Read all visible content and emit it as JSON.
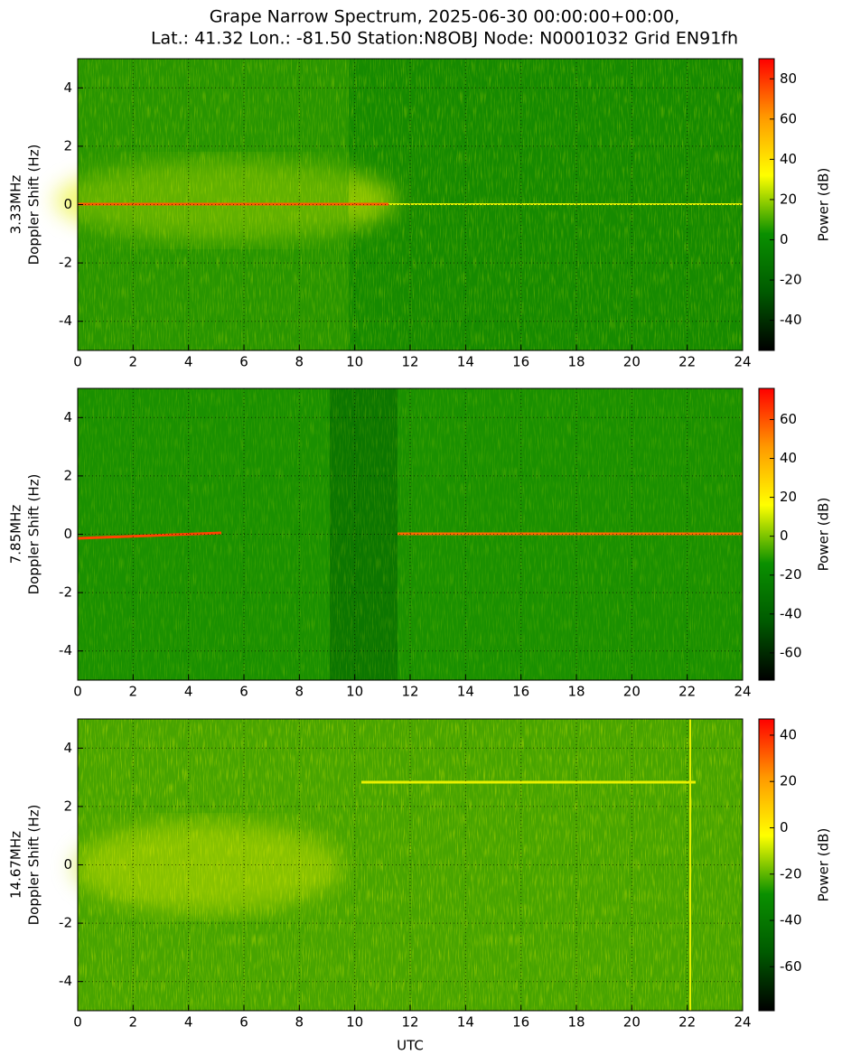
{
  "title": [
    "Grape Narrow Spectrum, 2025-06-30 00:00:00+00:00,",
    "Lat.: 41.32 Lon.: -81.50 Station:N8OBJ Node: N0001032 Grid EN91fh"
  ],
  "chart_data": [
    {
      "type": "heatmap",
      "ylabel": [
        "3.33MHz",
        "Doppler Shift (Hz)"
      ],
      "colorbar_label": "Power (dB)",
      "xlim": [
        0,
        24
      ],
      "xticks": [
        0,
        2,
        4,
        6,
        8,
        10,
        12,
        14,
        16,
        18,
        20,
        22,
        24
      ],
      "ylim": [
        -5,
        5
      ],
      "yticks": [
        -4,
        -2,
        0,
        2,
        4
      ],
      "grid": true,
      "clim": [
        -55,
        90
      ],
      "cticks": [
        -40,
        -20,
        0,
        20,
        40,
        60,
        80
      ],
      "colormap": [
        "#000000",
        "#005a00",
        "#0a9000",
        "#ffff00",
        "#ff9900",
        "#ff0000"
      ]
    },
    {
      "type": "heatmap",
      "ylabel": [
        "7.85MHz",
        "Doppler Shift (Hz)"
      ],
      "colorbar_label": "Power (dB)",
      "xlim": [
        0,
        24
      ],
      "xticks": [
        0,
        2,
        4,
        6,
        8,
        10,
        12,
        14,
        16,
        18,
        20,
        22,
        24
      ],
      "ylim": [
        -5,
        5
      ],
      "yticks": [
        -4,
        -2,
        0,
        2,
        4
      ],
      "grid": true,
      "clim": [
        -74,
        76
      ],
      "cticks": [
        -60,
        -40,
        -20,
        0,
        20,
        40,
        60
      ],
      "colormap": [
        "#000000",
        "#005a00",
        "#0a9000",
        "#ffff00",
        "#ff9900",
        "#ff0000"
      ]
    },
    {
      "type": "heatmap",
      "ylabel": [
        "14.67MHz",
        "Doppler Shift (Hz)"
      ],
      "colorbar_label": "Power (dB)",
      "xlabel": "UTC",
      "xlim": [
        0,
        24
      ],
      "xticks": [
        0,
        2,
        4,
        6,
        8,
        10,
        12,
        14,
        16,
        18,
        20,
        22,
        24
      ],
      "ylim": [
        -5,
        5
      ],
      "yticks": [
        -4,
        -2,
        0,
        2,
        4
      ],
      "grid": true,
      "clim": [
        -79,
        47
      ],
      "cticks": [
        -60,
        -40,
        -20,
        0,
        20,
        40
      ],
      "colormap": [
        "#000000",
        "#005a00",
        "#0a9000",
        "#ffff00",
        "#ff9900",
        "#ff0000"
      ]
    }
  ]
}
